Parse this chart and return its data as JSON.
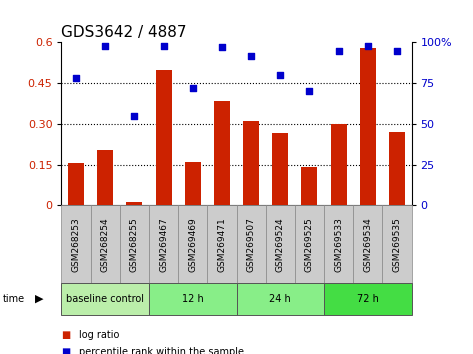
{
  "title": "GDS3642 / 4887",
  "samples": [
    "GSM268253",
    "GSM268254",
    "GSM268255",
    "GSM269467",
    "GSM269469",
    "GSM269471",
    "GSM269507",
    "GSM269524",
    "GSM269525",
    "GSM269533",
    "GSM269534",
    "GSM269535"
  ],
  "log_ratio": [
    0.155,
    0.205,
    0.012,
    0.5,
    0.16,
    0.385,
    0.31,
    0.265,
    0.142,
    0.3,
    0.58,
    0.27
  ],
  "percentile_rank": [
    78,
    98,
    55,
    98,
    72,
    97,
    92,
    80,
    70,
    95,
    98,
    95
  ],
  "groups": [
    {
      "label": "baseline control",
      "start": 0,
      "end": 3
    },
    {
      "label": "12 h",
      "start": 3,
      "end": 6
    },
    {
      "label": "24 h",
      "start": 6,
      "end": 9
    },
    {
      "label": "72 h",
      "start": 9,
      "end": 12
    }
  ],
  "group_colors": [
    "#bbeeaa",
    "#88ee88",
    "#88ee88",
    "#44dd44"
  ],
  "bar_color": "#cc2200",
  "scatter_color": "#0000cc",
  "cell_color": "#cccccc",
  "cell_edge_color": "#888888",
  "ylim_left": [
    0,
    0.6
  ],
  "ylim_right": [
    0,
    100
  ],
  "yticks_left": [
    0,
    0.15,
    0.3,
    0.45,
    0.6
  ],
  "ytick_labels_left": [
    "0",
    "0.15",
    "0.30",
    "0.45",
    "0.6"
  ],
  "yticks_right": [
    0,
    25,
    50,
    75,
    100
  ],
  "ytick_labels_right": [
    "0",
    "25",
    "50",
    "75",
    "100%"
  ],
  "hlines": [
    0.15,
    0.3,
    0.45
  ],
  "bg_color": "#ffffff",
  "title_fontsize": 11,
  "axis_fontsize": 8,
  "label_fontsize": 6.5,
  "legend_fontsize": 7,
  "group_fontsize": 7,
  "time_fontsize": 7
}
